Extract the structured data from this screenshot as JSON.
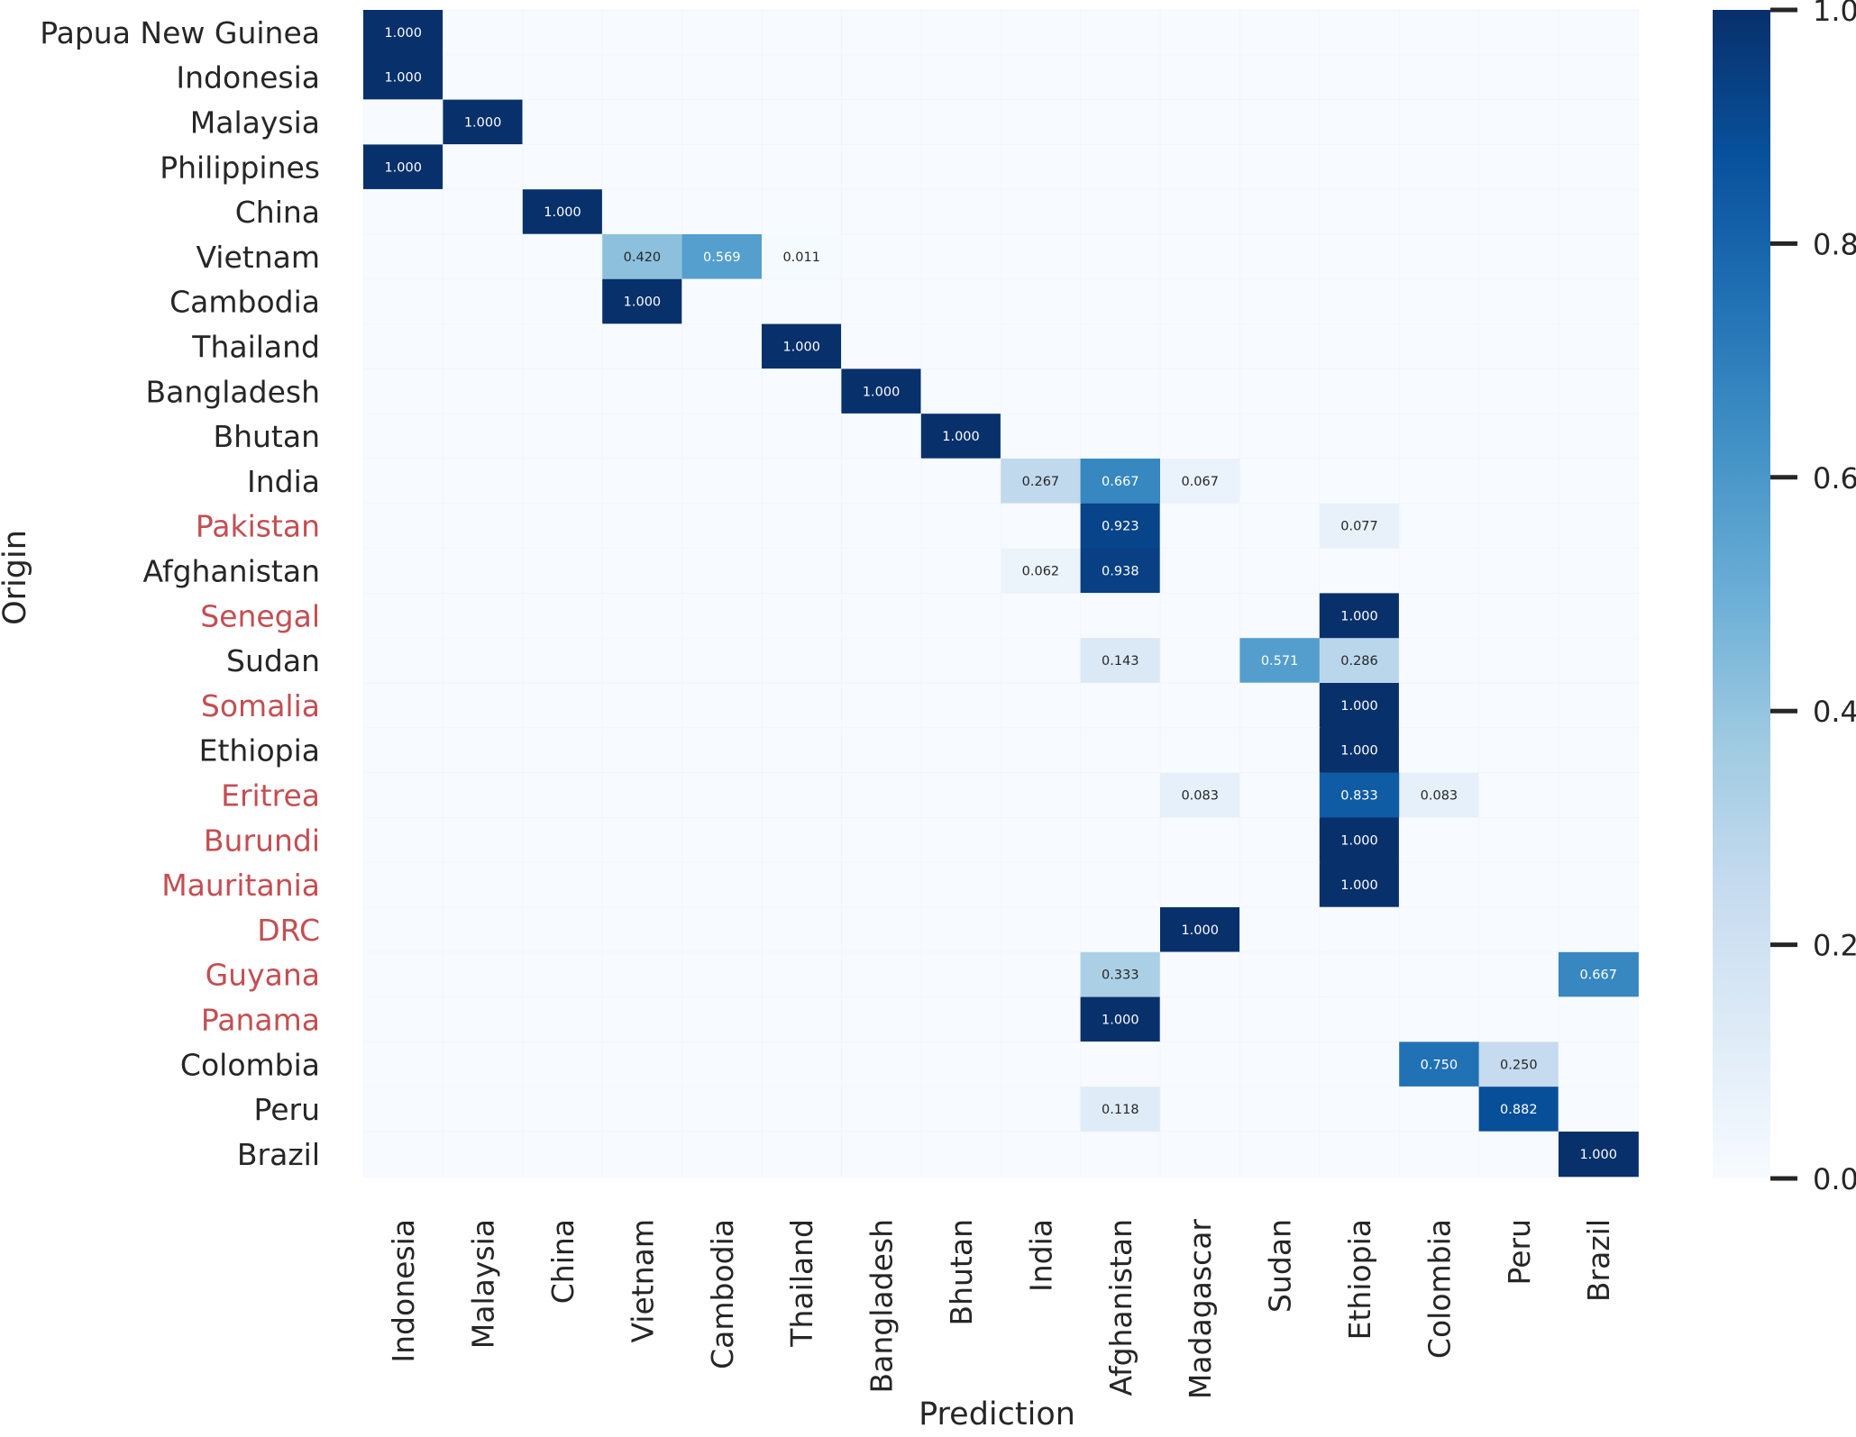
{
  "chart_data": {
    "type": "heatmap",
    "xlabel": "Prediction",
    "ylabel": "Origin",
    "x_categories": [
      "Indonesia",
      "Malaysia",
      "China",
      "Vietnam",
      "Cambodia",
      "Thailand",
      "Bangladesh",
      "Bhutan",
      "India",
      "Afghanistan",
      "Madagascar",
      "Sudan",
      "Ethiopia",
      "Colombia",
      "Peru",
      "Brazil"
    ],
    "y_categories": [
      "Papua New Guinea",
      "Indonesia",
      "Malaysia",
      "Philippines",
      "China",
      "Vietnam",
      "Cambodia",
      "Thailand",
      "Bangladesh",
      "Bhutan",
      "India",
      "Pakistan",
      "Afghanistan",
      "Senegal",
      "Sudan",
      "Somalia",
      "Ethiopia",
      "Eritrea",
      "Burundi",
      "Mauritania",
      "DRC",
      "Guyana",
      "Panama",
      "Colombia",
      "Peru",
      "Brazil"
    ],
    "highlighted_y_categories": [
      "Pakistan",
      "Senegal",
      "Somalia",
      "Eritrea",
      "Burundi",
      "Mauritania",
      "DRC",
      "Guyana",
      "Panama"
    ],
    "cells": [
      {
        "row": "Papua New Guinea",
        "col": "Indonesia",
        "value": 1.0,
        "label": "1.000"
      },
      {
        "row": "Indonesia",
        "col": "Indonesia",
        "value": 1.0,
        "label": "1.000"
      },
      {
        "row": "Malaysia",
        "col": "Malaysia",
        "value": 1.0,
        "label": "1.000"
      },
      {
        "row": "Philippines",
        "col": "Indonesia",
        "value": 1.0,
        "label": "1.000"
      },
      {
        "row": "China",
        "col": "China",
        "value": 1.0,
        "label": "1.000"
      },
      {
        "row": "Vietnam",
        "col": "Vietnam",
        "value": 0.42,
        "label": "0.420"
      },
      {
        "row": "Vietnam",
        "col": "Cambodia",
        "value": 0.569,
        "label": "0.569"
      },
      {
        "row": "Vietnam",
        "col": "Thailand",
        "value": 0.011,
        "label": "0.011"
      },
      {
        "row": "Cambodia",
        "col": "Vietnam",
        "value": 1.0,
        "label": "1.000"
      },
      {
        "row": "Thailand",
        "col": "Thailand",
        "value": 1.0,
        "label": "1.000"
      },
      {
        "row": "Bangladesh",
        "col": "Bangladesh",
        "value": 1.0,
        "label": "1.000"
      },
      {
        "row": "Bhutan",
        "col": "Bhutan",
        "value": 1.0,
        "label": "1.000"
      },
      {
        "row": "India",
        "col": "India",
        "value": 0.267,
        "label": "0.267"
      },
      {
        "row": "India",
        "col": "Afghanistan",
        "value": 0.667,
        "label": "0.667"
      },
      {
        "row": "India",
        "col": "Madagascar",
        "value": 0.067,
        "label": "0.067"
      },
      {
        "row": "Pakistan",
        "col": "Afghanistan",
        "value": 0.923,
        "label": "0.923"
      },
      {
        "row": "Pakistan",
        "col": "Ethiopia",
        "value": 0.077,
        "label": "0.077"
      },
      {
        "row": "Afghanistan",
        "col": "India",
        "value": 0.062,
        "label": "0.062"
      },
      {
        "row": "Afghanistan",
        "col": "Afghanistan",
        "value": 0.938,
        "label": "0.938"
      },
      {
        "row": "Senegal",
        "col": "Ethiopia",
        "value": 1.0,
        "label": "1.000"
      },
      {
        "row": "Sudan",
        "col": "Afghanistan",
        "value": 0.143,
        "label": "0.143"
      },
      {
        "row": "Sudan",
        "col": "Sudan",
        "value": 0.571,
        "label": "0.571"
      },
      {
        "row": "Sudan",
        "col": "Ethiopia",
        "value": 0.286,
        "label": "0.286"
      },
      {
        "row": "Somalia",
        "col": "Ethiopia",
        "value": 1.0,
        "label": "1.000"
      },
      {
        "row": "Ethiopia",
        "col": "Ethiopia",
        "value": 1.0,
        "label": "1.000"
      },
      {
        "row": "Eritrea",
        "col": "Madagascar",
        "value": 0.083,
        "label": "0.083"
      },
      {
        "row": "Eritrea",
        "col": "Ethiopia",
        "value": 0.833,
        "label": "0.833"
      },
      {
        "row": "Eritrea",
        "col": "Colombia",
        "value": 0.083,
        "label": "0.083"
      },
      {
        "row": "Burundi",
        "col": "Ethiopia",
        "value": 1.0,
        "label": "1.000"
      },
      {
        "row": "Mauritania",
        "col": "Ethiopia",
        "value": 1.0,
        "label": "1.000"
      },
      {
        "row": "DRC",
        "col": "Madagascar",
        "value": 1.0,
        "label": "1.000"
      },
      {
        "row": "Guyana",
        "col": "Afghanistan",
        "value": 0.333,
        "label": "0.333"
      },
      {
        "row": "Guyana",
        "col": "Brazil",
        "value": 0.667,
        "label": "0.667"
      },
      {
        "row": "Panama",
        "col": "Afghanistan",
        "value": 1.0,
        "label": "1.000"
      },
      {
        "row": "Colombia",
        "col": "Colombia",
        "value": 0.75,
        "label": "0.750"
      },
      {
        "row": "Colombia",
        "col": "Peru",
        "value": 0.25,
        "label": "0.250"
      },
      {
        "row": "Peru",
        "col": "Afghanistan",
        "value": 0.118,
        "label": "0.118"
      },
      {
        "row": "Peru",
        "col": "Peru",
        "value": 0.882,
        "label": "0.882"
      },
      {
        "row": "Brazil",
        "col": "Brazil",
        "value": 1.0,
        "label": "1.000"
      }
    ],
    "colorbar": {
      "range": [
        0.0,
        1.0
      ],
      "ticks": [
        0.0,
        0.2,
        0.4,
        0.6,
        0.8,
        1.0
      ],
      "tick_labels": [
        "0.0",
        "0.2",
        "0.4",
        "0.6",
        "0.8",
        "1.0"
      ]
    },
    "colors": {
      "highlight_label": "#c44e52",
      "normal_label": "#262626",
      "background_cell": "#f7fbff",
      "grid_line": "#eef4fb"
    },
    "colormap": "Blues"
  }
}
